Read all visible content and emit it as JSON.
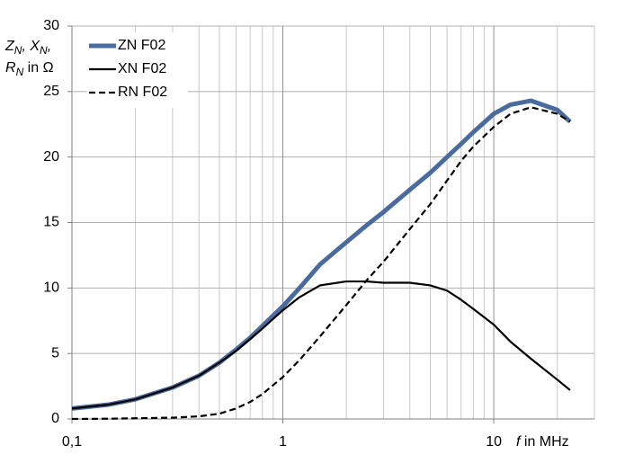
{
  "chart_data": {
    "type": "line",
    "ylabel": [
      "Z",
      "N",
      ", X",
      "N",
      ",",
      "R",
      "N",
      " in Ω"
    ],
    "xlabel": [
      "f",
      " in MHz"
    ],
    "x": [
      0.1,
      0.15,
      0.2,
      0.3,
      0.4,
      0.5,
      0.6,
      0.7,
      0.8,
      1,
      1.2,
      1.5,
      2,
      2.5,
      3,
      4,
      5,
      6,
      7,
      8,
      10,
      12,
      15,
      20,
      23
    ],
    "series": [
      {
        "name": "ZN F02",
        "color": "#4a6b9e",
        "style": "solid",
        "width": 5,
        "values": [
          0.8,
          1.1,
          1.5,
          2.4,
          3.3,
          4.3,
          5.3,
          6.2,
          7.1,
          8.6,
          10,
          11.8,
          13.5,
          14.8,
          15.8,
          17.5,
          18.8,
          20,
          21,
          21.9,
          23.3,
          24,
          24.3,
          23.6,
          22.7
        ]
      },
      {
        "name": "XN F02",
        "color": "#000000",
        "style": "solid",
        "width": 2.2,
        "values": [
          0.8,
          1.1,
          1.5,
          2.4,
          3.3,
          4.3,
          5.2,
          6.1,
          6.9,
          8.3,
          9.3,
          10.2,
          10.5,
          10.5,
          10.4,
          10.4,
          10.2,
          9.8,
          9.1,
          8.4,
          7.2,
          5.9,
          4.6,
          3.0,
          2.2
        ]
      },
      {
        "name": "RN F02",
        "color": "#000000",
        "style": "dashed",
        "width": 2.2,
        "values": [
          0,
          0.02,
          0.05,
          0.1,
          0.2,
          0.4,
          0.8,
          1.3,
          1.9,
          3.2,
          4.5,
          6.3,
          8.7,
          10.6,
          12,
          14.5,
          16.4,
          18.2,
          19.7,
          20.8,
          22.3,
          23.3,
          23.8,
          23.3,
          22.7
        ]
      }
    ],
    "log_x": true,
    "xlim": [
      0.1,
      30
    ],
    "xticks": [
      {
        "value": 0.1,
        "label": "0,1"
      },
      1,
      10
    ],
    "xminor": [
      0.2,
      0.3,
      0.4,
      0.5,
      0.6,
      0.7,
      0.8,
      0.9,
      2,
      3,
      4,
      5,
      6,
      7,
      8,
      9,
      20,
      30
    ],
    "ylim": [
      0,
      30
    ],
    "yticks": [
      0,
      5,
      10,
      15,
      20,
      25,
      30
    ],
    "grid": true,
    "legend": "top-left"
  }
}
